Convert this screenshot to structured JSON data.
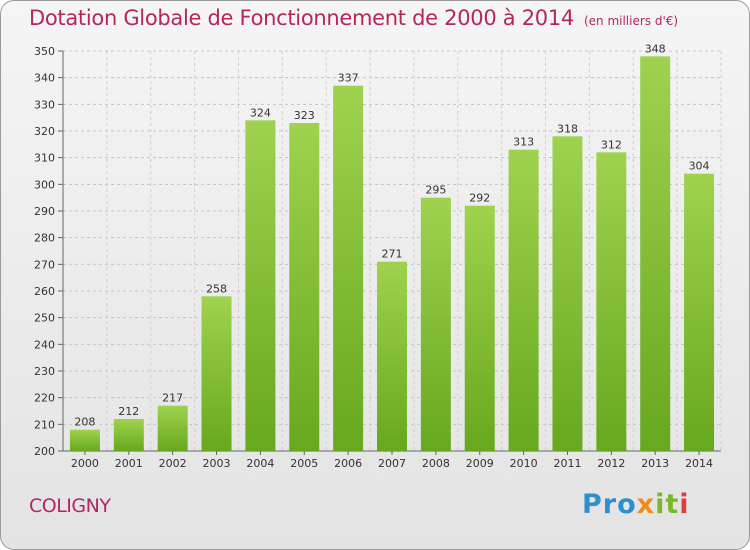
{
  "chart_data": {
    "type": "bar",
    "title": "Dotation Globale de Fonctionnement de 2000 à 2014",
    "unit_note": "(en milliers d'€)",
    "categories": [
      "2000",
      "2001",
      "2002",
      "2003",
      "2004",
      "2005",
      "2006",
      "2007",
      "2008",
      "2009",
      "2010",
      "2011",
      "2012",
      "2013",
      "2014"
    ],
    "values": [
      208,
      212,
      217,
      258,
      324,
      323,
      337,
      271,
      295,
      292,
      313,
      318,
      312,
      348,
      304
    ],
    "ylim": [
      200,
      350
    ],
    "yticks": [
      200,
      210,
      220,
      230,
      240,
      250,
      260,
      270,
      280,
      290,
      300,
      310,
      320,
      330,
      340,
      350
    ],
    "grid": true,
    "bar_color": "#8cc63f"
  },
  "commune": "COLIGNY",
  "logo": {
    "text": "Proxiti",
    "parts": [
      "Pro",
      "x",
      "it",
      "i"
    ],
    "colors": [
      "#2e8fcf",
      "#f08a1c",
      "#7ab829",
      "#e23c3c"
    ]
  }
}
